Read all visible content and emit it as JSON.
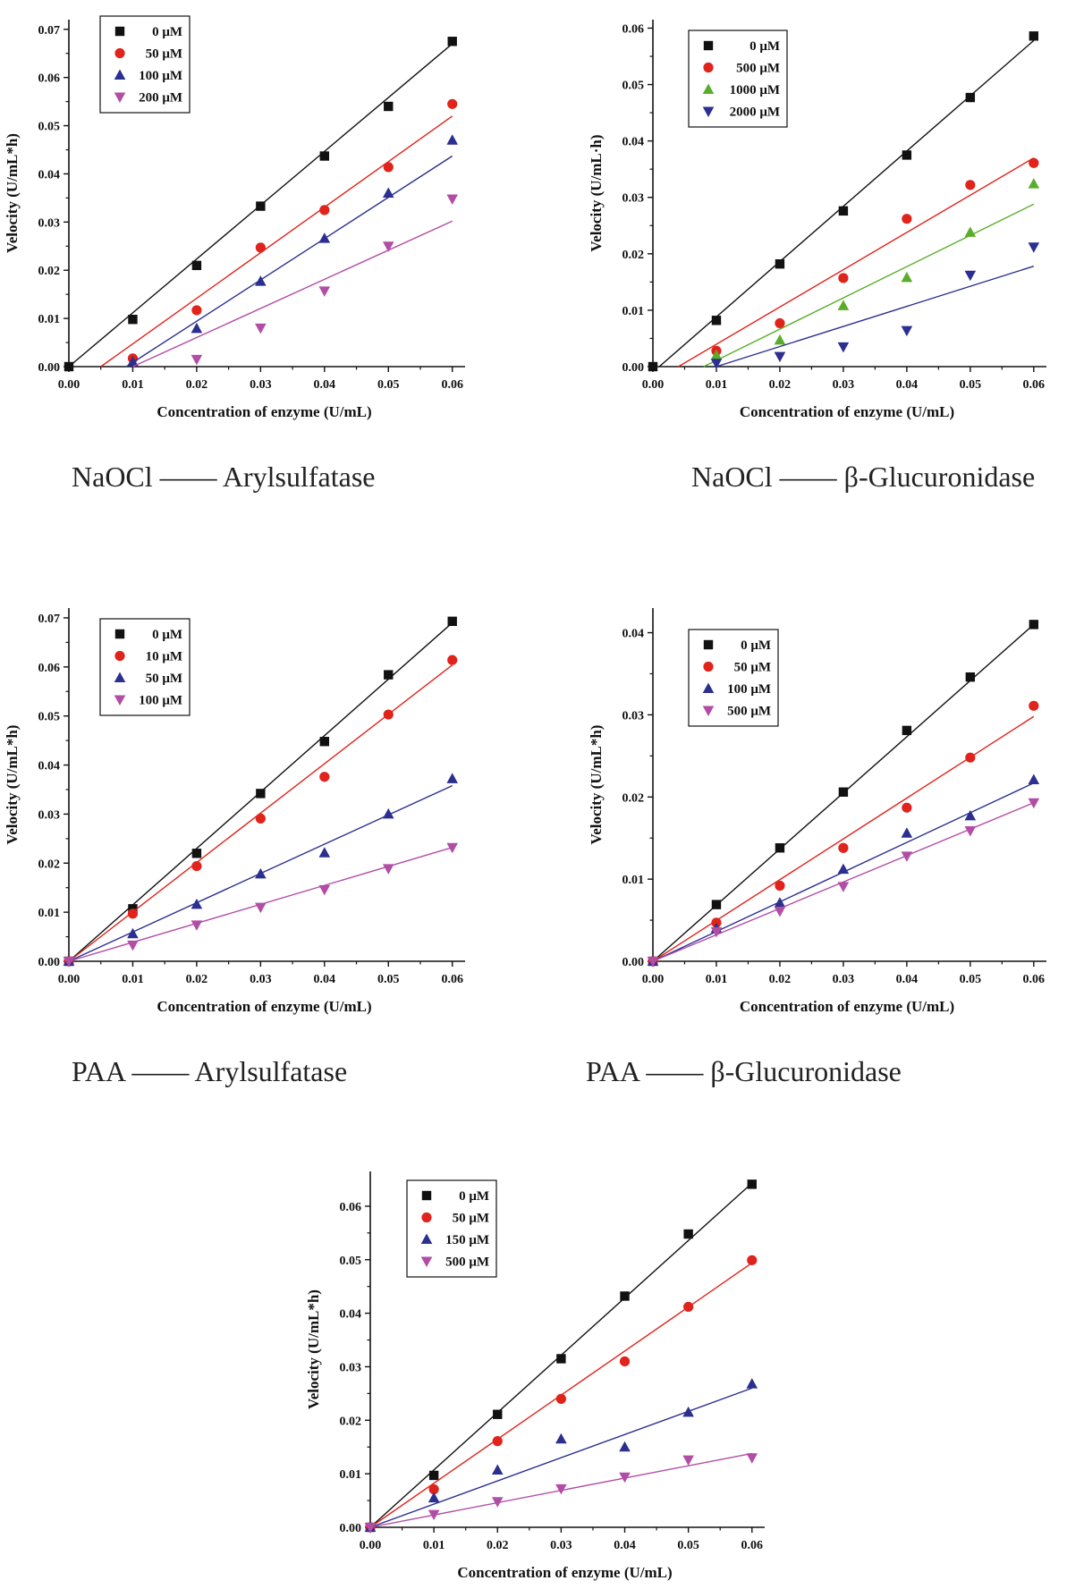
{
  "chart_data": [
    {
      "type": "scatter",
      "caption": "NaOCl —— Arylsulfatase",
      "xlabel": "Concentration of enzyme  (U/mL)",
      "ylabel": "Velocity  (U/mL*h)",
      "xlim": [
        0,
        0.062
      ],
      "ylim": [
        0,
        0.072
      ],
      "xticks": [
        "0.00",
        "0.01",
        "0.02",
        "0.03",
        "0.04",
        "0.05",
        "0.06"
      ],
      "yticks": [
        "0.00",
        "0.01",
        "0.02",
        "0.03",
        "0.04",
        "0.05",
        "0.06",
        "0.07"
      ],
      "legend_position": "top-left",
      "x": [
        0.0,
        0.01,
        0.02,
        0.03,
        0.04,
        0.05,
        0.06
      ],
      "series": [
        {
          "name": "0 μM",
          "marker": "square",
          "color": "#111111",
          "values": [
            0.0,
            0.0098,
            0.021,
            0.0333,
            0.0437,
            0.054,
            0.0675
          ],
          "fit": [
            0.0,
            0.0,
            0.06,
            0.067
          ]
        },
        {
          "name": "50 μM",
          "marker": "circle",
          "color": "#e0231b",
          "values": [
            null,
            0.0017,
            0.0117,
            0.0247,
            0.0325,
            0.0414,
            0.0545
          ],
          "fit": [
            0.005,
            0.0,
            0.06,
            0.052
          ]
        },
        {
          "name": "100 μM",
          "marker": "triangle-up",
          "color": "#2b2f8f",
          "values": [
            null,
            0.001,
            0.0079,
            0.0177,
            0.0266,
            0.036,
            0.047
          ],
          "fit": [
            0.009,
            0.0,
            0.06,
            0.0437
          ]
        },
        {
          "name": "200 μM",
          "marker": "triangle-down",
          "color": "#b24da6",
          "values": [
            null,
            null,
            0.0015,
            0.008,
            0.0157,
            0.025,
            0.0348
          ],
          "fit": [
            0.01,
            0.0,
            0.06,
            0.0302
          ]
        }
      ]
    },
    {
      "type": "scatter",
      "caption": "NaOCl —— β-Glucuronidase",
      "xlabel": "Concentration of enzyme  (U/mL)",
      "ylabel": "Velocity  (U/mL·h)",
      "xlim": [
        0,
        0.062
      ],
      "ylim": [
        0,
        0.0615
      ],
      "xticks": [
        "0.00",
        "0.01",
        "0.02",
        "0.03",
        "0.04",
        "0.05",
        "0.06"
      ],
      "yticks": [
        "0.00",
        "0.01",
        "0.02",
        "0.03",
        "0.04",
        "0.05",
        "0.06"
      ],
      "legend_position": "top-left",
      "x": [
        0.0,
        0.01,
        0.02,
        0.03,
        0.04,
        0.05,
        0.06
      ],
      "series": [
        {
          "name": "0 μM",
          "marker": "square",
          "color": "#111111",
          "values": [
            0.0,
            0.0082,
            0.0182,
            0.0276,
            0.0375,
            0.0477,
            0.0586
          ],
          "fit": [
            0.001,
            0.0,
            0.06,
            0.0578
          ]
        },
        {
          "name": "500 μM",
          "marker": "circle",
          "color": "#e0231b",
          "values": [
            null,
            0.0028,
            0.0077,
            0.0157,
            0.0262,
            0.0322,
            0.0361
          ],
          "fit": [
            0.004,
            0.0,
            0.06,
            0.037
          ]
        },
        {
          "name": "1000 μM",
          "marker": "triangle-up",
          "color": "#5aad2a",
          "values": [
            null,
            0.002,
            0.0047,
            0.0108,
            0.0158,
            0.0238,
            0.0324
          ],
          "fit": [
            0.008,
            0.0,
            0.06,
            0.0288
          ]
        },
        {
          "name": "2000 μM",
          "marker": "triangle-down",
          "color": "#2b2f8f",
          "values": [
            null,
            0.0006,
            0.0018,
            0.0035,
            0.0064,
            0.0162,
            0.0212
          ],
          "fit": [
            0.01,
            0.0,
            0.06,
            0.0178
          ]
        }
      ]
    },
    {
      "type": "scatter",
      "caption": "PAA —— Arylsulfatase",
      "xlabel": "Concentration of enzyme  (U/mL)",
      "ylabel": "Velocity  (U/mL*h)",
      "xlim": [
        0,
        0.062
      ],
      "ylim": [
        0,
        0.072
      ],
      "xticks": [
        "0.00",
        "0.01",
        "0.02",
        "0.03",
        "0.04",
        "0.05",
        "0.06"
      ],
      "yticks": [
        "0.00",
        "0.01",
        "0.02",
        "0.03",
        "0.04",
        "0.05",
        "0.06",
        "0.07"
      ],
      "legend_position": "top-left",
      "x": [
        0.0,
        0.01,
        0.02,
        0.03,
        0.04,
        0.05,
        0.06
      ],
      "series": [
        {
          "name": "0 μM",
          "marker": "square",
          "color": "#111111",
          "values": [
            0.0,
            0.0107,
            0.022,
            0.0342,
            0.0448,
            0.0584,
            0.0693
          ],
          "fit": [
            0.0,
            0.0,
            0.06,
            0.069
          ]
        },
        {
          "name": "10 μM",
          "marker": "circle",
          "color": "#e0231b",
          "values": [
            0.0,
            0.0097,
            0.0194,
            0.0291,
            0.0376,
            0.0503,
            0.0614
          ],
          "fit": [
            0.0,
            0.0,
            0.06,
            0.0604
          ]
        },
        {
          "name": "50 μM",
          "marker": "triangle-up",
          "color": "#2b2f8f",
          "values": [
            0.0,
            0.0056,
            0.0116,
            0.0178,
            0.0221,
            0.03,
            0.0372
          ],
          "fit": [
            0.0,
            0.0,
            0.06,
            0.0358
          ]
        },
        {
          "name": "100 μM",
          "marker": "triangle-down",
          "color": "#b24da6",
          "values": [
            0.0,
            0.0033,
            0.0074,
            0.011,
            0.0146,
            0.0189,
            0.0232
          ],
          "fit": [
            0.0,
            0.0,
            0.06,
            0.0232
          ]
        }
      ]
    },
    {
      "type": "scatter",
      "caption": "PAA —— β-Glucuronidase",
      "xlabel": "Concentration of enzyme  (U/mL)",
      "ylabel": "Velocity  (U/mL*h)",
      "xlim": [
        0,
        0.062
      ],
      "ylim": [
        0,
        0.043
      ],
      "xticks": [
        "0.00",
        "0.01",
        "0.02",
        "0.03",
        "0.04",
        "0.05",
        "0.06"
      ],
      "yticks": [
        "0.00",
        "0.01",
        "0.02",
        "0.03",
        "0.04"
      ],
      "legend_position": "top-left",
      "x": [
        0.0,
        0.01,
        0.02,
        0.03,
        0.04,
        0.05,
        0.06
      ],
      "series": [
        {
          "name": "0 μM",
          "marker": "square",
          "color": "#111111",
          "values": [
            0.0,
            0.0069,
            0.0138,
            0.0206,
            0.0281,
            0.0346,
            0.041
          ],
          "fit": [
            0.0,
            0.0,
            0.06,
            0.041
          ]
        },
        {
          "name": "50 μM",
          "marker": "circle",
          "color": "#e0231b",
          "values": [
            0.0,
            0.0047,
            0.0092,
            0.0138,
            0.0187,
            0.0248,
            0.0311
          ],
          "fit": [
            0.0,
            0.0,
            0.06,
            0.0298
          ]
        },
        {
          "name": "100 μM",
          "marker": "triangle-up",
          "color": "#2b2f8f",
          "values": [
            0.0,
            0.004,
            0.0071,
            0.0112,
            0.0156,
            0.0177,
            0.0221
          ],
          "fit": [
            0.0,
            0.0,
            0.06,
            0.0217
          ]
        },
        {
          "name": "500 μM",
          "marker": "triangle-down",
          "color": "#b24da6",
          "values": [
            0.0,
            0.0036,
            0.0061,
            0.0091,
            0.0128,
            0.0159,
            0.0193
          ],
          "fit": [
            0.0,
            0.0,
            0.06,
            0.0193
          ]
        }
      ]
    },
    {
      "type": "scatter",
      "caption": "",
      "xlabel": "Concentration of enzyme  (U/mL)",
      "ylabel": "Velocity  (U/mL*h)",
      "xlim": [
        0,
        0.062
      ],
      "ylim": [
        0,
        0.0665
      ],
      "xticks": [
        "0.00",
        "0.01",
        "0.02",
        "0.03",
        "0.04",
        "0.05",
        "0.06"
      ],
      "yticks": [
        "0.00",
        "0.01",
        "0.02",
        "0.03",
        "0.04",
        "0.05",
        "0.06"
      ],
      "legend_position": "top-left",
      "x": [
        0.0,
        0.01,
        0.02,
        0.03,
        0.04,
        0.05,
        0.06
      ],
      "series": [
        {
          "name": "0 μM",
          "marker": "square",
          "color": "#111111",
          "values": [
            0.0,
            0.0097,
            0.0211,
            0.0315,
            0.0432,
            0.0548,
            0.0641
          ],
          "fit": [
            0.0,
            0.0,
            0.06,
            0.0643
          ]
        },
        {
          "name": "50 μM",
          "marker": "circle",
          "color": "#e0231b",
          "values": [
            0.0,
            0.0071,
            0.0161,
            0.024,
            0.031,
            0.0412,
            0.0499
          ],
          "fit": [
            0.0,
            0.0,
            0.06,
            0.0494
          ]
        },
        {
          "name": "150 μM",
          "marker": "triangle-up",
          "color": "#2b2f8f",
          "values": [
            0.0,
            0.0055,
            0.0107,
            0.0165,
            0.015,
            0.0215,
            0.0268
          ],
          "fit": [
            0.0,
            0.0,
            0.06,
            0.026
          ]
        },
        {
          "name": "500 μM",
          "marker": "triangle-down",
          "color": "#b24da6",
          "values": [
            0.0,
            0.0024,
            0.0048,
            0.0072,
            0.0094,
            0.0126,
            0.013
          ],
          "fit": [
            0.0,
            0.0,
            0.06,
            0.0138
          ]
        }
      ]
    }
  ]
}
